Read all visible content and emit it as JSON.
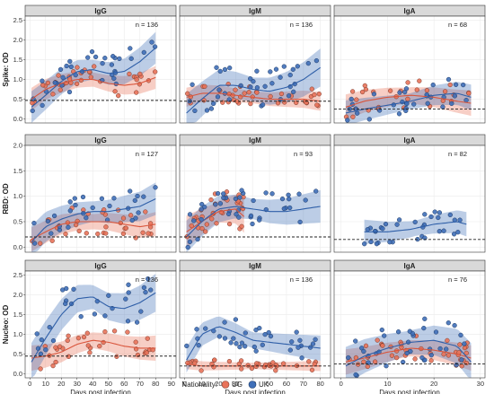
{
  "colors": {
    "UG": "#E8735A",
    "UK": "#3F6FB8"
  },
  "legend": {
    "title": "Nationality:",
    "items": [
      "UG",
      "UK"
    ]
  },
  "chart_data": {
    "type": "scatter",
    "ncols": 3,
    "nrows": 3,
    "xlabel": "Days post infection",
    "row_labels": [
      "Spike: OD",
      "RBD: OD",
      "Nucleo: OD"
    ],
    "yticks": [
      0.0,
      0.5,
      1.0,
      1.5,
      2.0,
      2.5
    ],
    "xticks_by_col": [
      [
        0,
        10,
        20,
        30,
        40,
        50,
        60,
        70,
        80,
        90
      ],
      [
        0,
        10,
        20,
        30,
        40,
        50,
        60,
        70,
        80
      ],
      [
        0,
        10,
        20,
        30
      ]
    ],
    "panels": [
      {
        "title": "IgG",
        "n": "n = 136",
        "xlim": [
          -3,
          93
        ],
        "ylim": [
          -0.1,
          2.6
        ],
        "cutoff": 0.47,
        "series": [
          {
            "name": "UG",
            "fit": [
              [
                1,
                0.5
              ],
              [
                10,
                0.75
              ],
              [
                20,
                0.9
              ],
              [
                30,
                1.0
              ],
              [
                40,
                1.0
              ],
              [
                50,
                0.9
              ],
              [
                60,
                0.85
              ],
              [
                70,
                0.9
              ],
              [
                80,
                1.05
              ]
            ],
            "band": 0.18
          },
          {
            "name": "UK",
            "fit": [
              [
                1,
                0.3
              ],
              [
                10,
                0.6
              ],
              [
                20,
                0.95
              ],
              [
                30,
                1.2
              ],
              [
                40,
                1.25
              ],
              [
                50,
                1.15
              ],
              [
                60,
                1.2
              ],
              [
                70,
                1.45
              ],
              [
                80,
                1.8
              ]
            ],
            "band": 0.25
          }
        ]
      },
      {
        "title": "IgM",
        "n": "n = 136",
        "xlim": [
          -3,
          86
        ],
        "ylim": [
          -0.1,
          2.6
        ],
        "cutoff": 0.45,
        "series": [
          {
            "name": "UG",
            "fit": [
              [
                1,
                0.55
              ],
              [
                10,
                0.65
              ],
              [
                20,
                0.65
              ],
              [
                30,
                0.6
              ],
              [
                40,
                0.55
              ],
              [
                50,
                0.5
              ],
              [
                60,
                0.5
              ],
              [
                70,
                0.5
              ],
              [
                80,
                0.45
              ]
            ],
            "band": 0.15
          },
          {
            "name": "UK",
            "fit": [
              [
                1,
                0.15
              ],
              [
                10,
                0.5
              ],
              [
                20,
                0.85
              ],
              [
                30,
                0.85
              ],
              [
                40,
                0.75
              ],
              [
                50,
                0.7
              ],
              [
                60,
                0.8
              ],
              [
                70,
                1.0
              ],
              [
                80,
                1.3
              ]
            ],
            "band": 0.3
          }
        ]
      },
      {
        "title": "IgA",
        "n": "n = 68",
        "xlim": [
          -1.5,
          31
        ],
        "ylim": [
          -0.1,
          2.6
        ],
        "cutoff": 0.25,
        "series": [
          {
            "name": "UG",
            "fit": [
              [
                1,
                0.3
              ],
              [
                5,
                0.45
              ],
              [
                10,
                0.55
              ],
              [
                15,
                0.6
              ],
              [
                20,
                0.55
              ],
              [
                25,
                0.45
              ],
              [
                28,
                0.4
              ]
            ],
            "band": 0.2
          },
          {
            "name": "UK",
            "fit": [
              [
                1,
                0.15
              ],
              [
                5,
                0.25
              ],
              [
                10,
                0.35
              ],
              [
                15,
                0.45
              ],
              [
                20,
                0.6
              ],
              [
                25,
                0.65
              ],
              [
                28,
                0.55
              ]
            ],
            "band": 0.2
          }
        ]
      },
      {
        "title": "IgG",
        "n": "n = 127",
        "xlim": [
          -3,
          93
        ],
        "ylim": [
          -0.1,
          2.0
        ],
        "cutoff": 0.2,
        "series": [
          {
            "name": "UG",
            "fit": [
              [
                1,
                0.15
              ],
              [
                10,
                0.3
              ],
              [
                20,
                0.45
              ],
              [
                30,
                0.5
              ],
              [
                40,
                0.5
              ],
              [
                50,
                0.5
              ],
              [
                60,
                0.45
              ],
              [
                70,
                0.4
              ],
              [
                80,
                0.45
              ]
            ],
            "band": 0.15
          },
          {
            "name": "UK",
            "fit": [
              [
                1,
                0.1
              ],
              [
                10,
                0.4
              ],
              [
                20,
                0.55
              ],
              [
                30,
                0.65
              ],
              [
                40,
                0.7
              ],
              [
                50,
                0.7
              ],
              [
                60,
                0.75
              ],
              [
                70,
                0.8
              ],
              [
                80,
                0.95
              ]
            ],
            "band": 0.2
          }
        ]
      },
      {
        "title": "IgM",
        "n": "n = 93",
        "xlim": [
          -3,
          86
        ],
        "ylim": [
          -0.1,
          2.0
        ],
        "cutoff": 0.2,
        "series": [
          {
            "name": "UG",
            "fit": [
              [
                1,
                0.3
              ],
              [
                10,
                0.5
              ],
              [
                20,
                0.7
              ],
              [
                30,
                0.75
              ],
              [
                35,
                0.6
              ]
            ],
            "band": 0.2
          },
          {
            "name": "UK",
            "fit": [
              [
                1,
                0.2
              ],
              [
                10,
                0.5
              ],
              [
                20,
                0.75
              ],
              [
                30,
                0.8
              ],
              [
                40,
                0.75
              ],
              [
                50,
                0.7
              ],
              [
                60,
                0.7
              ],
              [
                70,
                0.75
              ],
              [
                80,
                0.8
              ]
            ],
            "band": 0.2
          }
        ]
      },
      {
        "title": "IgA",
        "n": "n = 82",
        "xlim": [
          -1.5,
          31
        ],
        "ylim": [
          -0.1,
          2.0
        ],
        "cutoff": 0.15,
        "series": [
          {
            "name": "UK",
            "fit": [
              [
                5,
                0.3
              ],
              [
                10,
                0.3
              ],
              [
                15,
                0.35
              ],
              [
                20,
                0.45
              ],
              [
                25,
                0.5
              ],
              [
                27,
                0.45
              ]
            ],
            "band": 0.15
          }
        ]
      },
      {
        "title": "IgG",
        "n": "n = 136",
        "xlim": [
          -3,
          93
        ],
        "ylim": [
          -0.1,
          2.6
        ],
        "cutoff": 0.45,
        "series": [
          {
            "name": "UG",
            "fit": [
              [
                1,
                0.4
              ],
              [
                10,
                0.45
              ],
              [
                20,
                0.55
              ],
              [
                30,
                0.75
              ],
              [
                40,
                0.85
              ],
              [
                50,
                0.8
              ],
              [
                60,
                0.7
              ],
              [
                70,
                0.65
              ],
              [
                80,
                0.65
              ]
            ],
            "band": 0.2
          },
          {
            "name": "UK",
            "fit": [
              [
                1,
                0.3
              ],
              [
                10,
                0.9
              ],
              [
                20,
                1.5
              ],
              [
                30,
                1.9
              ],
              [
                40,
                1.95
              ],
              [
                50,
                1.7
              ],
              [
                60,
                1.65
              ],
              [
                70,
                1.8
              ],
              [
                80,
                2.05
              ]
            ],
            "band": 0.3
          }
        ]
      },
      {
        "title": "IgM",
        "n": "n = 136",
        "xlim": [
          -3,
          86
        ],
        "ylim": [
          -0.1,
          2.6
        ],
        "cutoff": 0.2,
        "series": [
          {
            "name": "UG",
            "fit": [
              [
                1,
                0.25
              ],
              [
                10,
                0.2
              ],
              [
                20,
                0.2
              ],
              [
                30,
                0.2
              ],
              [
                40,
                0.2
              ],
              [
                50,
                0.2
              ],
              [
                60,
                0.2
              ],
              [
                70,
                0.2
              ],
              [
                80,
                0.2
              ]
            ],
            "band": 0.08
          },
          {
            "name": "UK",
            "fit": [
              [
                1,
                0.35
              ],
              [
                10,
                1.0
              ],
              [
                20,
                1.2
              ],
              [
                30,
                1.05
              ],
              [
                40,
                0.85
              ],
              [
                50,
                0.8
              ],
              [
                60,
                0.75
              ],
              [
                70,
                0.7
              ],
              [
                80,
                0.65
              ]
            ],
            "band": 0.2
          }
        ]
      },
      {
        "title": "IgA",
        "n": "n = 76",
        "xlim": [
          -1.5,
          31
        ],
        "ylim": [
          -0.1,
          2.6
        ],
        "cutoff": 0.25,
        "series": [
          {
            "name": "UG",
            "fit": [
              [
                1,
                0.3
              ],
              [
                5,
                0.4
              ],
              [
                10,
                0.55
              ],
              [
                15,
                0.65
              ],
              [
                20,
                0.6
              ],
              [
                25,
                0.5
              ],
              [
                28,
                0.4
              ]
            ],
            "band": 0.2
          },
          {
            "name": "UK",
            "fit": [
              [
                1,
                0.2
              ],
              [
                5,
                0.45
              ],
              [
                10,
                0.65
              ],
              [
                15,
                0.8
              ],
              [
                20,
                0.85
              ],
              [
                25,
                0.7
              ],
              [
                28,
                0.3
              ]
            ],
            "band": 0.3
          }
        ]
      }
    ]
  }
}
